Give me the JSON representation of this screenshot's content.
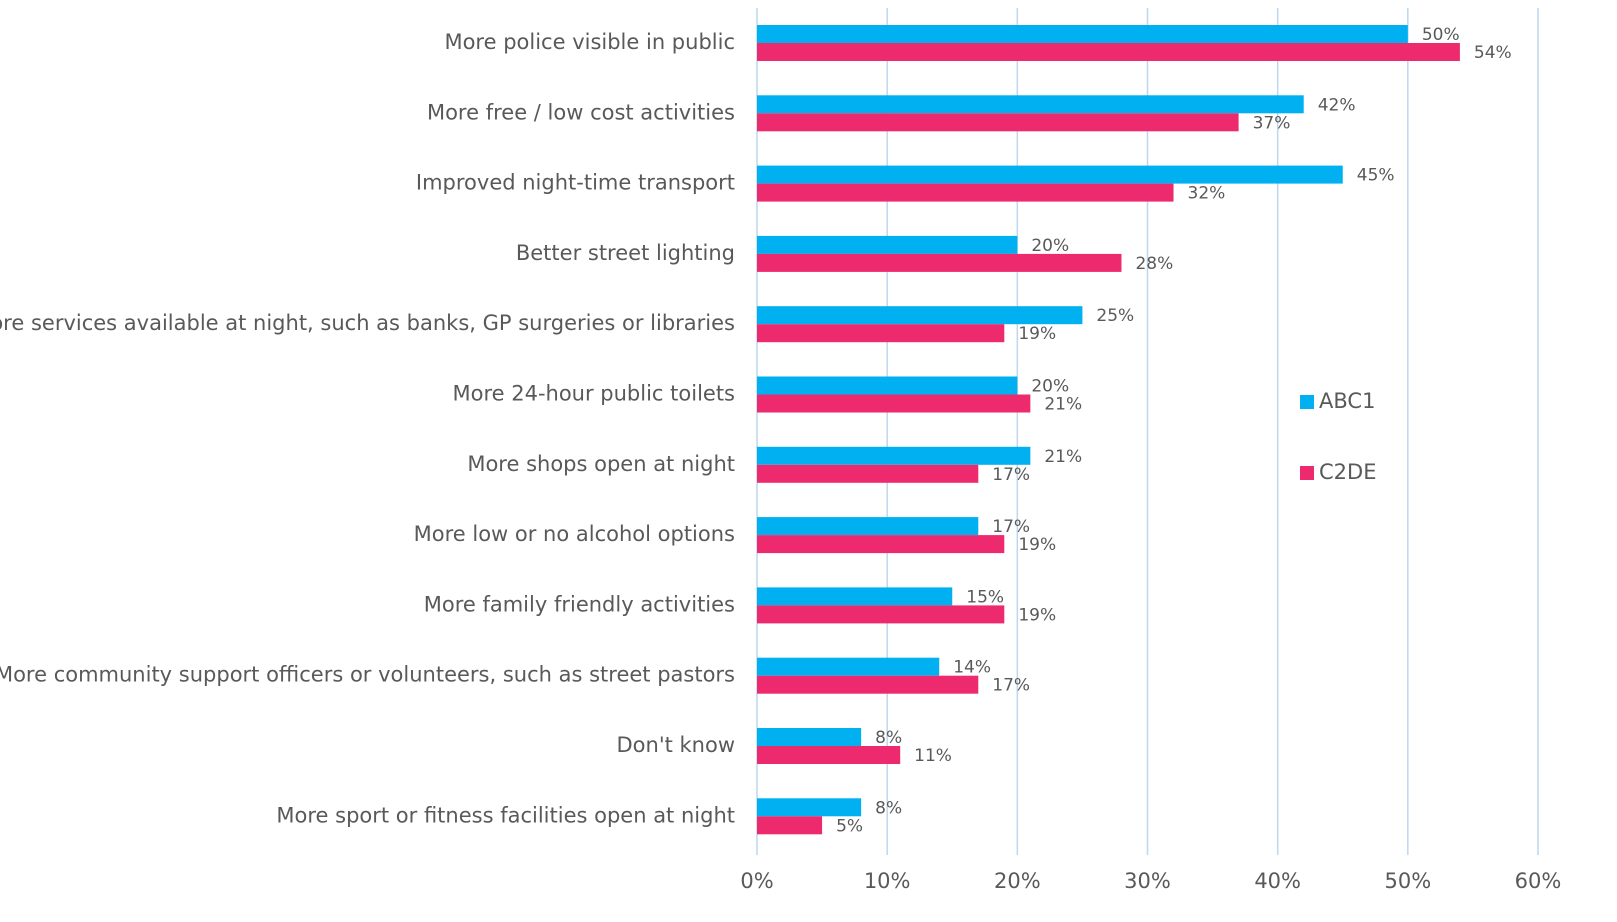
{
  "chart_data": {
    "type": "bar",
    "orientation": "horizontal",
    "categories": [
      "More police visible in public",
      "More free / low cost activities",
      "Improved night-time transport",
      "Better street lighting",
      "More services available at night, such as banks, GP surgeries or libraries",
      "More 24-hour public toilets",
      "More shops open at night",
      "More low or no alcohol options",
      "More family friendly activities",
      "More community support officers or volunteers, such as street pastors",
      "Don't know",
      "More sport or fitness facilities open at night"
    ],
    "series": [
      {
        "name": "ABC1",
        "color": "#00b0f0",
        "values": [
          50,
          42,
          45,
          20,
          25,
          20,
          21,
          17,
          15,
          14,
          8,
          8
        ],
        "value_labels": [
          "50%",
          "42%",
          "45%",
          "20%",
          "25%",
          "20%",
          "21%",
          "17%",
          "15%",
          "14%",
          "8%",
          "8%"
        ]
      },
      {
        "name": "C2DE",
        "color": "#ee2a6e",
        "values": [
          54,
          37,
          32,
          28,
          19,
          21,
          17,
          19,
          19,
          17,
          11,
          5
        ],
        "value_labels": [
          "54%",
          "37%",
          "32%",
          "28%",
          "19%",
          "21%",
          "17%",
          "19%",
          "19%",
          "17%",
          "11%",
          "5%"
        ]
      }
    ],
    "xlim": [
      0,
      60
    ],
    "xticks": [
      {
        "value": 0,
        "label": "0%"
      },
      {
        "value": 10,
        "label": "10%"
      },
      {
        "value": 20,
        "label": "20%"
      },
      {
        "value": 30,
        "label": "30%"
      },
      {
        "value": 40,
        "label": "40%"
      },
      {
        "value": 50,
        "label": "50%"
      },
      {
        "value": 60,
        "label": "60%"
      }
    ],
    "grid": true,
    "legend": "right"
  }
}
